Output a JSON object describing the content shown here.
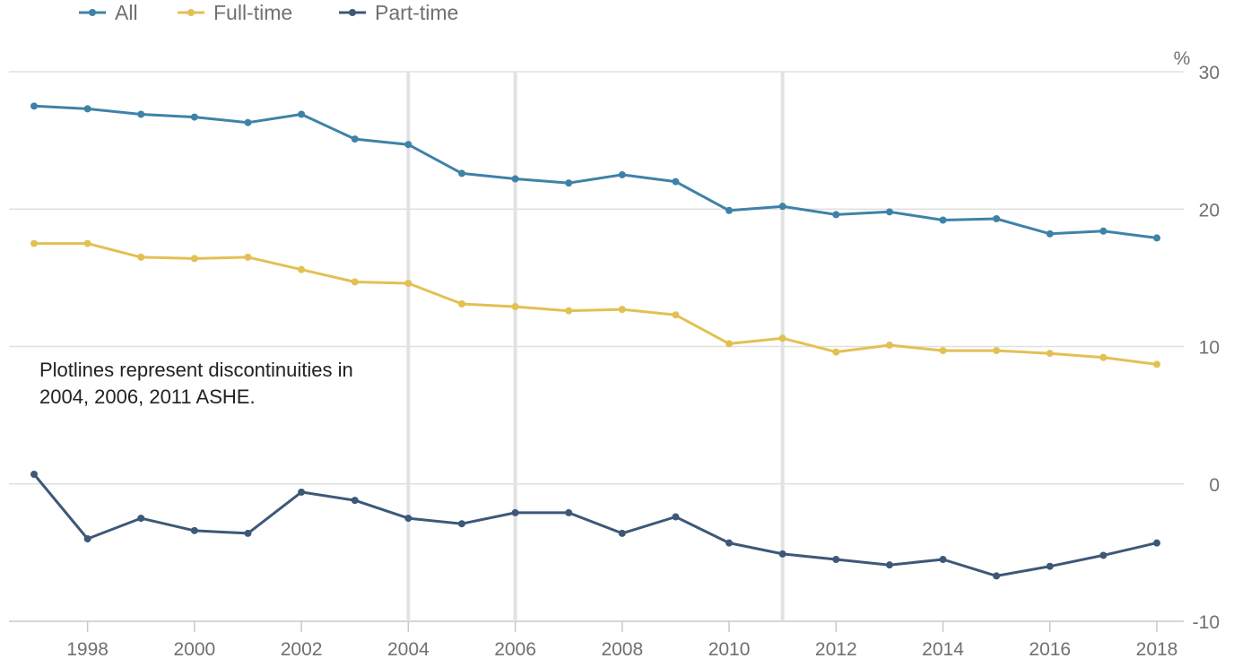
{
  "chart_data": {
    "type": "line",
    "x": [
      1997,
      1998,
      1999,
      2000,
      2001,
      2002,
      2003,
      2004,
      2005,
      2006,
      2007,
      2008,
      2009,
      2010,
      2011,
      2012,
      2013,
      2014,
      2015,
      2016,
      2017,
      2018
    ],
    "x_tick_labels": [
      "1998",
      "2000",
      "2002",
      "2004",
      "2006",
      "2008",
      "2010",
      "2012",
      "2014",
      "2016",
      "2018"
    ],
    "y_tick_labels": [
      "30",
      "20",
      "10",
      "0",
      "-10"
    ],
    "ylim": [
      -10,
      30
    ],
    "y_unit": "%",
    "y_axis_side": "right",
    "grid": "horizontal",
    "legend_position": "top-left",
    "series": [
      {
        "name": "All",
        "color": "#3f82a8",
        "values": [
          27.5,
          27.3,
          26.9,
          26.7,
          26.3,
          26.9,
          25.1,
          24.7,
          22.6,
          22.2,
          21.9,
          22.5,
          22.0,
          19.9,
          20.2,
          19.6,
          19.8,
          19.2,
          19.3,
          18.2,
          18.4,
          17.9
        ]
      },
      {
        "name": "Full-time",
        "color": "#e3c054",
        "values": [
          17.5,
          17.5,
          16.5,
          16.4,
          16.5,
          15.6,
          14.7,
          14.6,
          13.1,
          12.9,
          12.6,
          12.7,
          12.3,
          10.2,
          10.6,
          9.6,
          10.1,
          9.7,
          9.7,
          9.5,
          9.2,
          8.7
        ]
      },
      {
        "name": "Part-time",
        "color": "#3d5878",
        "values": [
          0.7,
          -4.0,
          -2.5,
          -3.4,
          -3.6,
          -0.6,
          -1.2,
          -2.5,
          -2.9,
          -2.1,
          -2.1,
          -3.6,
          -2.4,
          -4.3,
          -5.1,
          -5.5,
          -5.9,
          -5.5,
          -6.7,
          -6.0,
          -5.2,
          -4.3
        ]
      }
    ],
    "plotlines_x": [
      2004,
      2006,
      2011
    ],
    "annotation": [
      "Plotlines represent discontinuities in",
      "2004, 2006, 2011 ASHE."
    ]
  }
}
